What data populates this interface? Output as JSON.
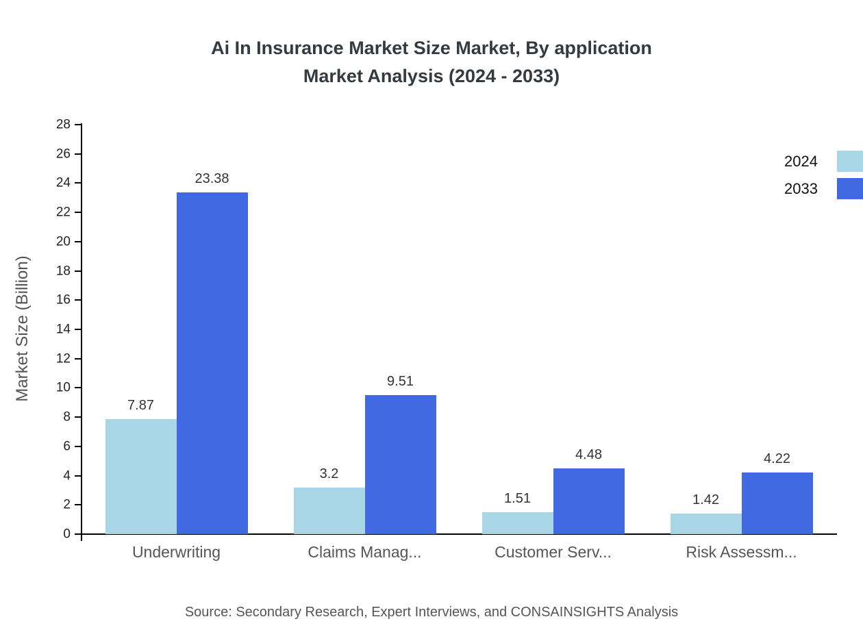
{
  "title": {
    "line1": "Ai In Insurance Market Size Market, By application",
    "line2": "Market Analysis (2024 - 2033)"
  },
  "source": "Source: Secondary Research, Expert Interviews, and CONSAINSIGHTS Analysis",
  "colors": {
    "series_2024": "#a8d6e6",
    "series_2033": "#4169e1",
    "axis": "#000000",
    "text_muted": "#555555"
  },
  "chart_data": {
    "type": "bar",
    "title": "Ai In Insurance Market Size Market, By application Market Analysis (2024 - 2033)",
    "categories": [
      "Underwriting",
      "Claims Manag...",
      "Customer Serv...",
      "Risk Assessm..."
    ],
    "series": [
      {
        "name": "2024",
        "color": "#a8d6e6",
        "values": [
          7.87,
          3.2,
          1.51,
          1.42
        ]
      },
      {
        "name": "2033",
        "color": "#4169e1",
        "values": [
          23.38,
          9.51,
          4.48,
          4.22
        ]
      }
    ],
    "xlabel": "",
    "ylabel": "Market Size (Billion)",
    "ylim": [
      0,
      28
    ],
    "ytick_step": 2,
    "grid": false,
    "legend_position": "top-right",
    "value_labels": true
  }
}
